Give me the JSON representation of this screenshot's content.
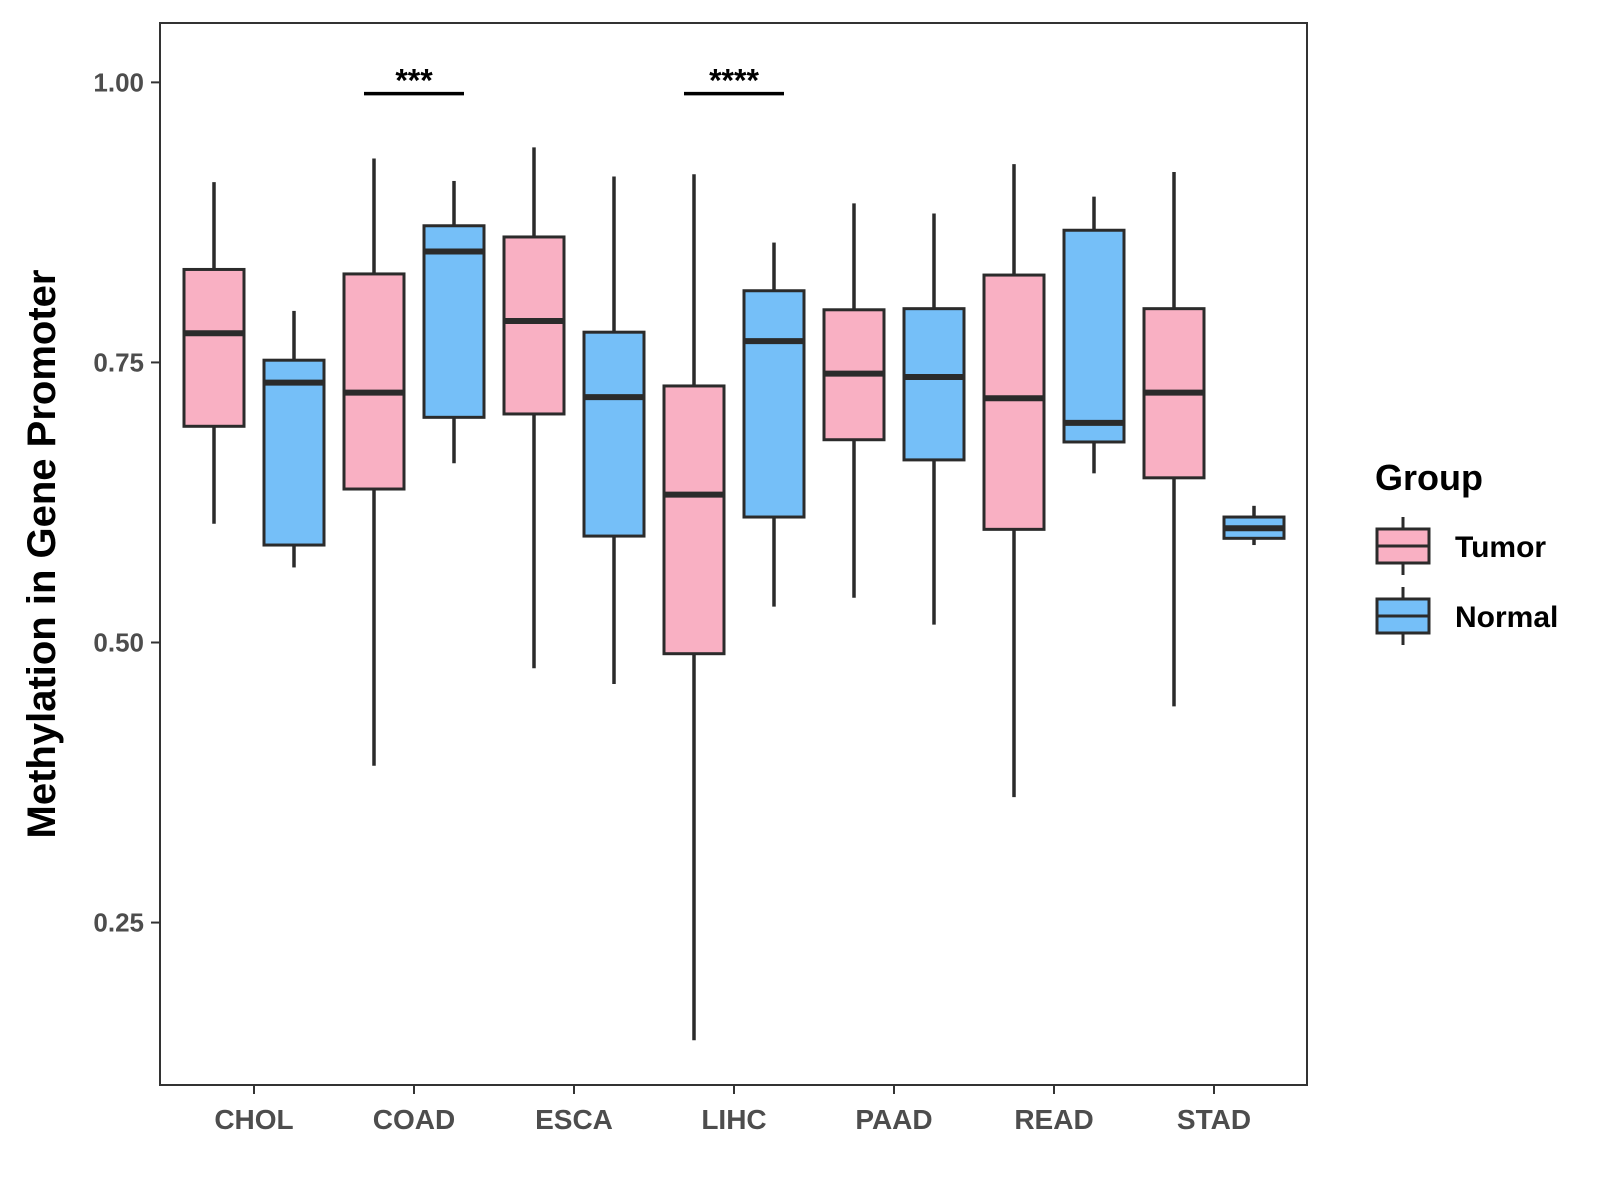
{
  "chart_data": {
    "type": "boxplot",
    "title": "",
    "xlabel": "",
    "ylabel": "Methylation in Gene Promoter",
    "ylim": [
      0.105,
      1.053
    ],
    "yticks": [
      0.25,
      0.5,
      0.75,
      1.0
    ],
    "ytick_labels": [
      "0.25",
      "0.50",
      "0.75",
      "1.00"
    ],
    "grid": false,
    "legend_position": "right",
    "legend": {
      "title": "Group",
      "entries": [
        {
          "name": "Tumor",
          "color": "#f9b0c3"
        },
        {
          "name": "Normal",
          "color": "#75bff8"
        }
      ]
    },
    "categories": [
      "CHOL",
      "COAD",
      "ESCA",
      "LIHC",
      "PAAD",
      "READ",
      "STAD"
    ],
    "series": [
      {
        "name": "Tumor",
        "color": "#f9b0c3",
        "boxes": [
          {
            "min": 0.606,
            "q1": 0.693,
            "median": 0.776,
            "q3": 0.833,
            "max": 0.911
          },
          {
            "min": 0.39,
            "q1": 0.637,
            "median": 0.723,
            "q3": 0.829,
            "max": 0.932
          },
          {
            "min": 0.477,
            "q1": 0.704,
            "median": 0.787,
            "q3": 0.862,
            "max": 0.942
          },
          {
            "min": 0.145,
            "q1": 0.49,
            "median": 0.632,
            "q3": 0.729,
            "max": 0.918
          },
          {
            "min": 0.54,
            "q1": 0.681,
            "median": 0.74,
            "q3": 0.797,
            "max": 0.892
          },
          {
            "min": 0.362,
            "q1": 0.601,
            "median": 0.718,
            "q3": 0.828,
            "max": 0.927
          },
          {
            "min": 0.443,
            "q1": 0.647,
            "median": 0.723,
            "q3": 0.798,
            "max": 0.92
          }
        ]
      },
      {
        "name": "Normal",
        "color": "#75bff8",
        "boxes": [
          {
            "min": 0.567,
            "q1": 0.587,
            "median": 0.732,
            "q3": 0.752,
            "max": 0.796
          },
          {
            "min": 0.66,
            "q1": 0.701,
            "median": 0.849,
            "q3": 0.872,
            "max": 0.912
          },
          {
            "min": 0.463,
            "q1": 0.595,
            "median": 0.719,
            "q3": 0.777,
            "max": 0.916
          },
          {
            "min": 0.532,
            "q1": 0.612,
            "median": 0.769,
            "q3": 0.814,
            "max": 0.857
          },
          {
            "min": 0.516,
            "q1": 0.663,
            "median": 0.737,
            "q3": 0.798,
            "max": 0.883
          },
          {
            "min": 0.651,
            "q1": 0.679,
            "median": 0.696,
            "q3": 0.868,
            "max": 0.898
          },
          {
            "min": 0.587,
            "q1": 0.593,
            "median": 0.602,
            "q3": 0.612,
            "max": 0.622
          }
        ]
      }
    ],
    "annotations": [
      {
        "category": "COAD",
        "label": "***",
        "y": 0.99
      },
      {
        "category": "LIHC",
        "label": "****",
        "y": 0.99
      }
    ]
  }
}
